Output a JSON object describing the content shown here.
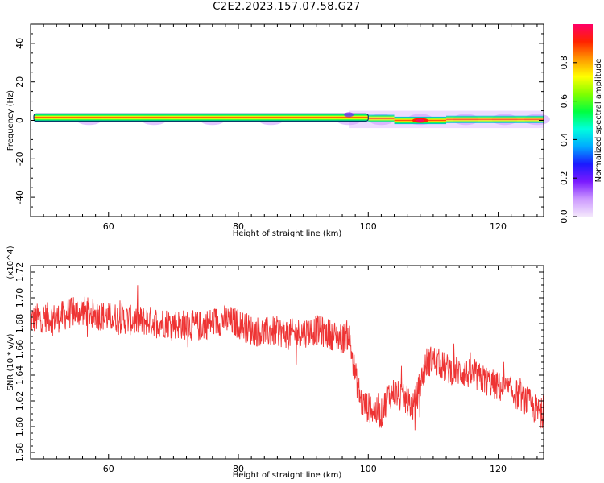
{
  "title": "C2E2.2023.157.07.58.G27",
  "chart_data": [
    {
      "type": "heatmap",
      "xlabel": "Height of straight line (km)",
      "ylabel": "Frequency (Hz)",
      "xlim": [
        48,
        127
      ],
      "ylim": [
        -50,
        50
      ],
      "x_ticks": [
        60,
        80,
        100,
        120
      ],
      "y_ticks": [
        -40,
        -20,
        0,
        20,
        40
      ],
      "colorbar": {
        "label": "Normalized spectral amplitude",
        "range": [
          0.0,
          1.0
        ],
        "ticks": [
          "0.0",
          "0.2",
          "0.4",
          "0.6",
          "0.8"
        ],
        "colormap": "rainbow",
        "colors": [
          "#f4e8fc",
          "#cc99ff",
          "#7a1aff",
          "#1a1aff",
          "#00aaff",
          "#00ffdd",
          "#00ff40",
          "#80ff00",
          "#ffff00",
          "#ff9900",
          "#ff2200",
          "#ff0066"
        ]
      },
      "ridge": {
        "x_from": 48.5,
        "x_to": 127,
        "segments": [
          {
            "x": [
              48.5,
              100
            ],
            "freq_hz": 1.5,
            "peak_amplitude": 0.95
          },
          {
            "x": [
              100,
              104
            ],
            "freq_hz": 1.0,
            "peak_amplitude": 0.5
          },
          {
            "x": [
              104,
              112
            ],
            "freq_hz": 0.0,
            "peak_amplitude": 0.9
          },
          {
            "x": [
              112,
              127
            ],
            "freq_hz": 0.5,
            "peak_amplitude": 0.45
          }
        ],
        "halo_xs": [
          57,
          67,
          76,
          85,
          97,
          102,
          108,
          115,
          121,
          126
        ]
      }
    },
    {
      "type": "line",
      "xlabel": "Height of straight line (km)",
      "ylabel": "SNR (10 * v/v)",
      "y_multiplier": "(x10^4)",
      "xlim": [
        48,
        127
      ],
      "ylim": [
        1.575,
        1.725
      ],
      "x_ticks": [
        60,
        80,
        100,
        120
      ],
      "y_ticks": [
        1.58,
        1.6,
        1.62,
        1.64,
        1.66,
        1.68,
        1.7,
        1.72
      ],
      "color": "#ee3333",
      "series": [
        {
          "x": [
            48,
            50,
            52,
            54,
            56,
            58,
            60,
            62,
            64,
            66,
            68,
            70,
            72,
            74,
            76,
            78,
            80,
            82,
            84,
            86,
            88,
            90,
            92,
            94,
            96,
            97,
            98,
            99,
            100,
            101,
            102,
            103,
            104,
            105,
            106,
            107,
            108,
            109,
            110,
            112,
            114,
            116,
            118,
            120,
            122,
            124,
            126,
            127
          ],
          "y": [
            1.683,
            1.685,
            1.684,
            1.688,
            1.69,
            1.687,
            1.685,
            1.684,
            1.682,
            1.682,
            1.681,
            1.68,
            1.679,
            1.678,
            1.681,
            1.683,
            1.68,
            1.675,
            1.673,
            1.674,
            1.672,
            1.673,
            1.675,
            1.672,
            1.668,
            1.672,
            1.64,
            1.618,
            1.615,
            1.612,
            1.609,
            1.624,
            1.627,
            1.622,
            1.62,
            1.615,
            1.633,
            1.65,
            1.652,
            1.645,
            1.643,
            1.64,
            1.636,
            1.631,
            1.627,
            1.622,
            1.612,
            1.61
          ],
          "noise_amplitude": 0.012
        }
      ]
    }
  ]
}
